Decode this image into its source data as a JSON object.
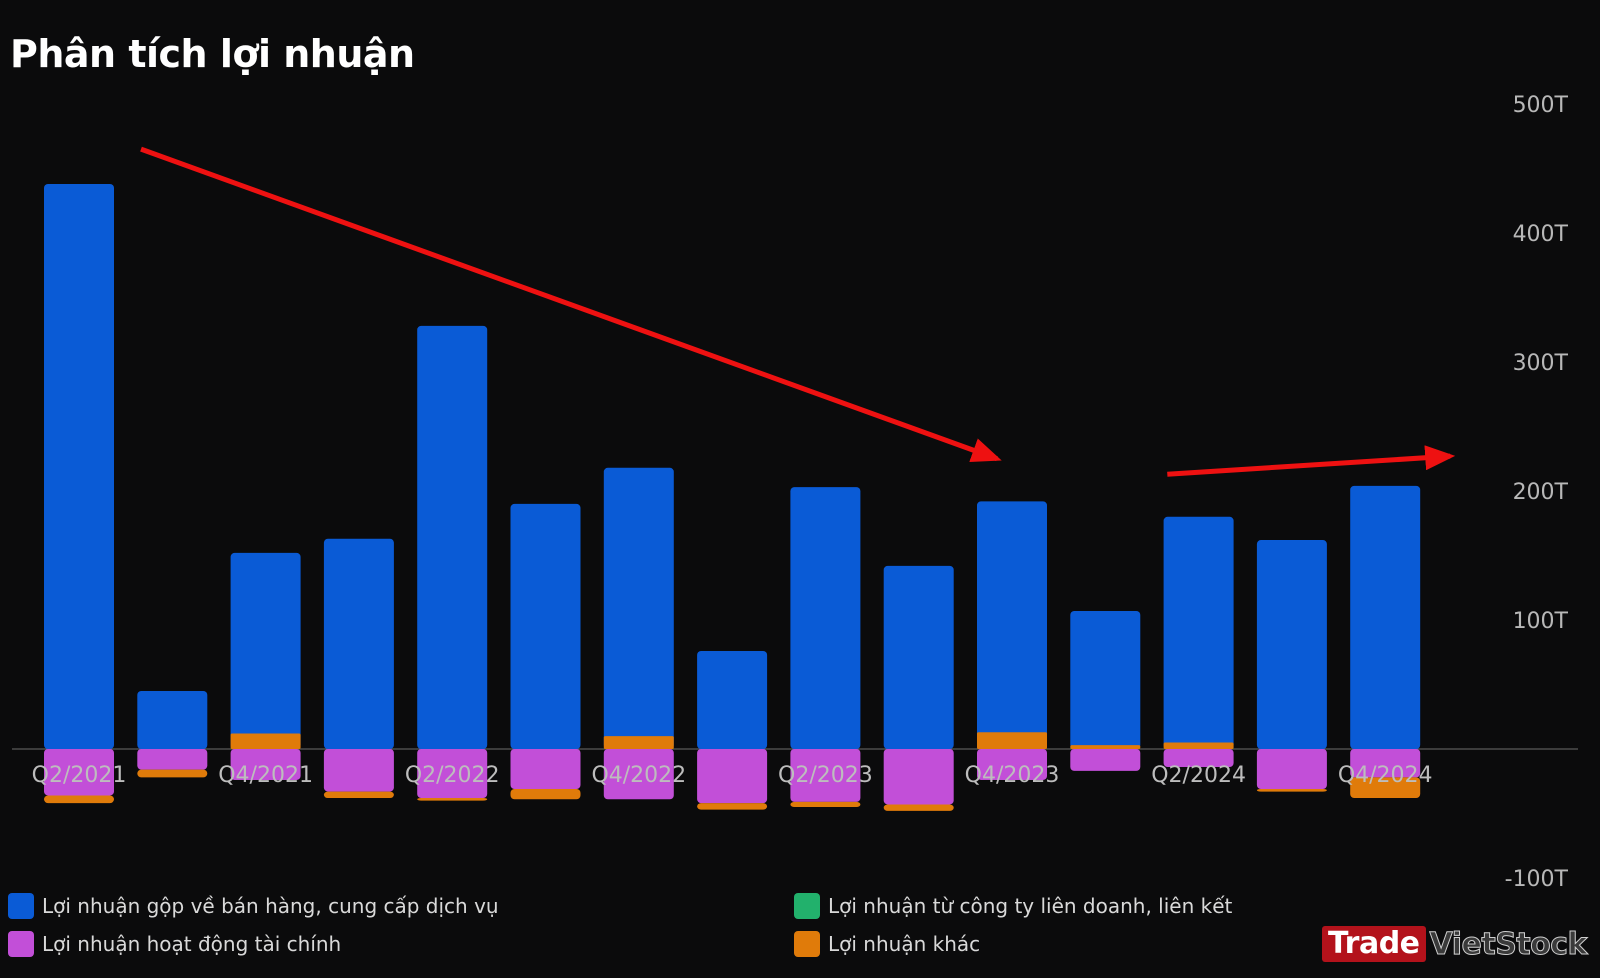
{
  "title": "Phân tích lợi nhuận",
  "colors": {
    "background": "#0b0b0c",
    "gross_profit": "#0a5bd6",
    "joint_venture": "#22b16c",
    "financial": "#c24fd8",
    "other": "#e07b0a",
    "trend_arrow": "#ee1111",
    "zero_line": "#5a5a5a"
  },
  "legend": [
    {
      "label": "Lợi nhuận gộp về bán hàng, cung cấp dịch vụ",
      "color": "#0a5bd6"
    },
    {
      "label": "Lợi nhuận từ công ty liên doanh, liên kết",
      "color": "#22b16c"
    },
    {
      "label": "Lợi nhuận hoạt động tài chính",
      "color": "#c24fd8"
    },
    {
      "label": "Lợi nhuận khác",
      "color": "#e07b0a"
    }
  ],
  "brand": {
    "part1": "Trade",
    "part2": "VietStock"
  },
  "chart_data": {
    "type": "bar",
    "stacked": true,
    "title": "Phân tích lợi nhuận",
    "unit": "T",
    "ylim": [
      -100,
      500
    ],
    "yticks": [
      500,
      400,
      300,
      200,
      100,
      -100
    ],
    "ytick_labels": [
      "500T",
      "400T",
      "300T",
      "200T",
      "100T",
      "-100T"
    ],
    "y_axis_side": "right",
    "categories": [
      "Q2/2021",
      "Q3/2021",
      "Q4/2021",
      "Q1/2022",
      "Q2/2022",
      "Q3/2022",
      "Q4/2022",
      "Q1/2023",
      "Q2/2023",
      "Q3/2023",
      "Q4/2023",
      "Q1/2024",
      "Q2/2024",
      "Q3/2024",
      "Q4/2024"
    ],
    "x_tick_labels_shown": [
      "Q2/2021",
      "",
      "Q4/2021",
      "",
      "Q2/2022",
      "",
      "Q4/2022",
      "",
      "Q2/2023",
      "",
      "Q4/2023",
      "",
      "Q2/2024",
      "",
      "Q4/2024"
    ],
    "series": [
      {
        "name": "Lợi nhuận gộp về bán hàng, cung cấp dịch vụ",
        "color": "#0a5bd6",
        "values": [
          438,
          45,
          152,
          163,
          328,
          190,
          218,
          76,
          203,
          142,
          192,
          107,
          180,
          162,
          204
        ]
      },
      {
        "name": "Lợi nhuận từ công ty liên doanh, liên kết",
        "color": "#22b16c",
        "values": [
          0,
          0,
          0,
          0,
          0,
          0,
          0,
          0,
          0,
          0,
          0,
          0,
          0,
          0,
          0
        ]
      },
      {
        "name": "Lợi nhuận hoạt động tài chính",
        "color": "#c24fd8",
        "values": [
          -36,
          -16,
          -24,
          -33,
          -38,
          -31,
          -39,
          -42,
          -41,
          -43,
          -24,
          -17,
          -14,
          -31,
          -22
        ]
      },
      {
        "name": "Lợi nhuận khác",
        "color": "#e07b0a",
        "values": [
          -6,
          -6,
          12,
          -5,
          -2,
          -8,
          10,
          -5,
          -4,
          -5,
          13,
          3,
          5,
          -2,
          -16
        ]
      }
    ],
    "annotations": [
      {
        "type": "arrow",
        "from": {
          "category": "Q2/2021",
          "y": 465
        },
        "to": {
          "category": "Q4/2023",
          "y": 225
        }
      },
      {
        "type": "arrow",
        "from": {
          "category": "Q1/2024",
          "y": 213
        },
        "to": {
          "category": "Q4/2024",
          "y": 227
        }
      }
    ],
    "legend_position": "bottom"
  }
}
